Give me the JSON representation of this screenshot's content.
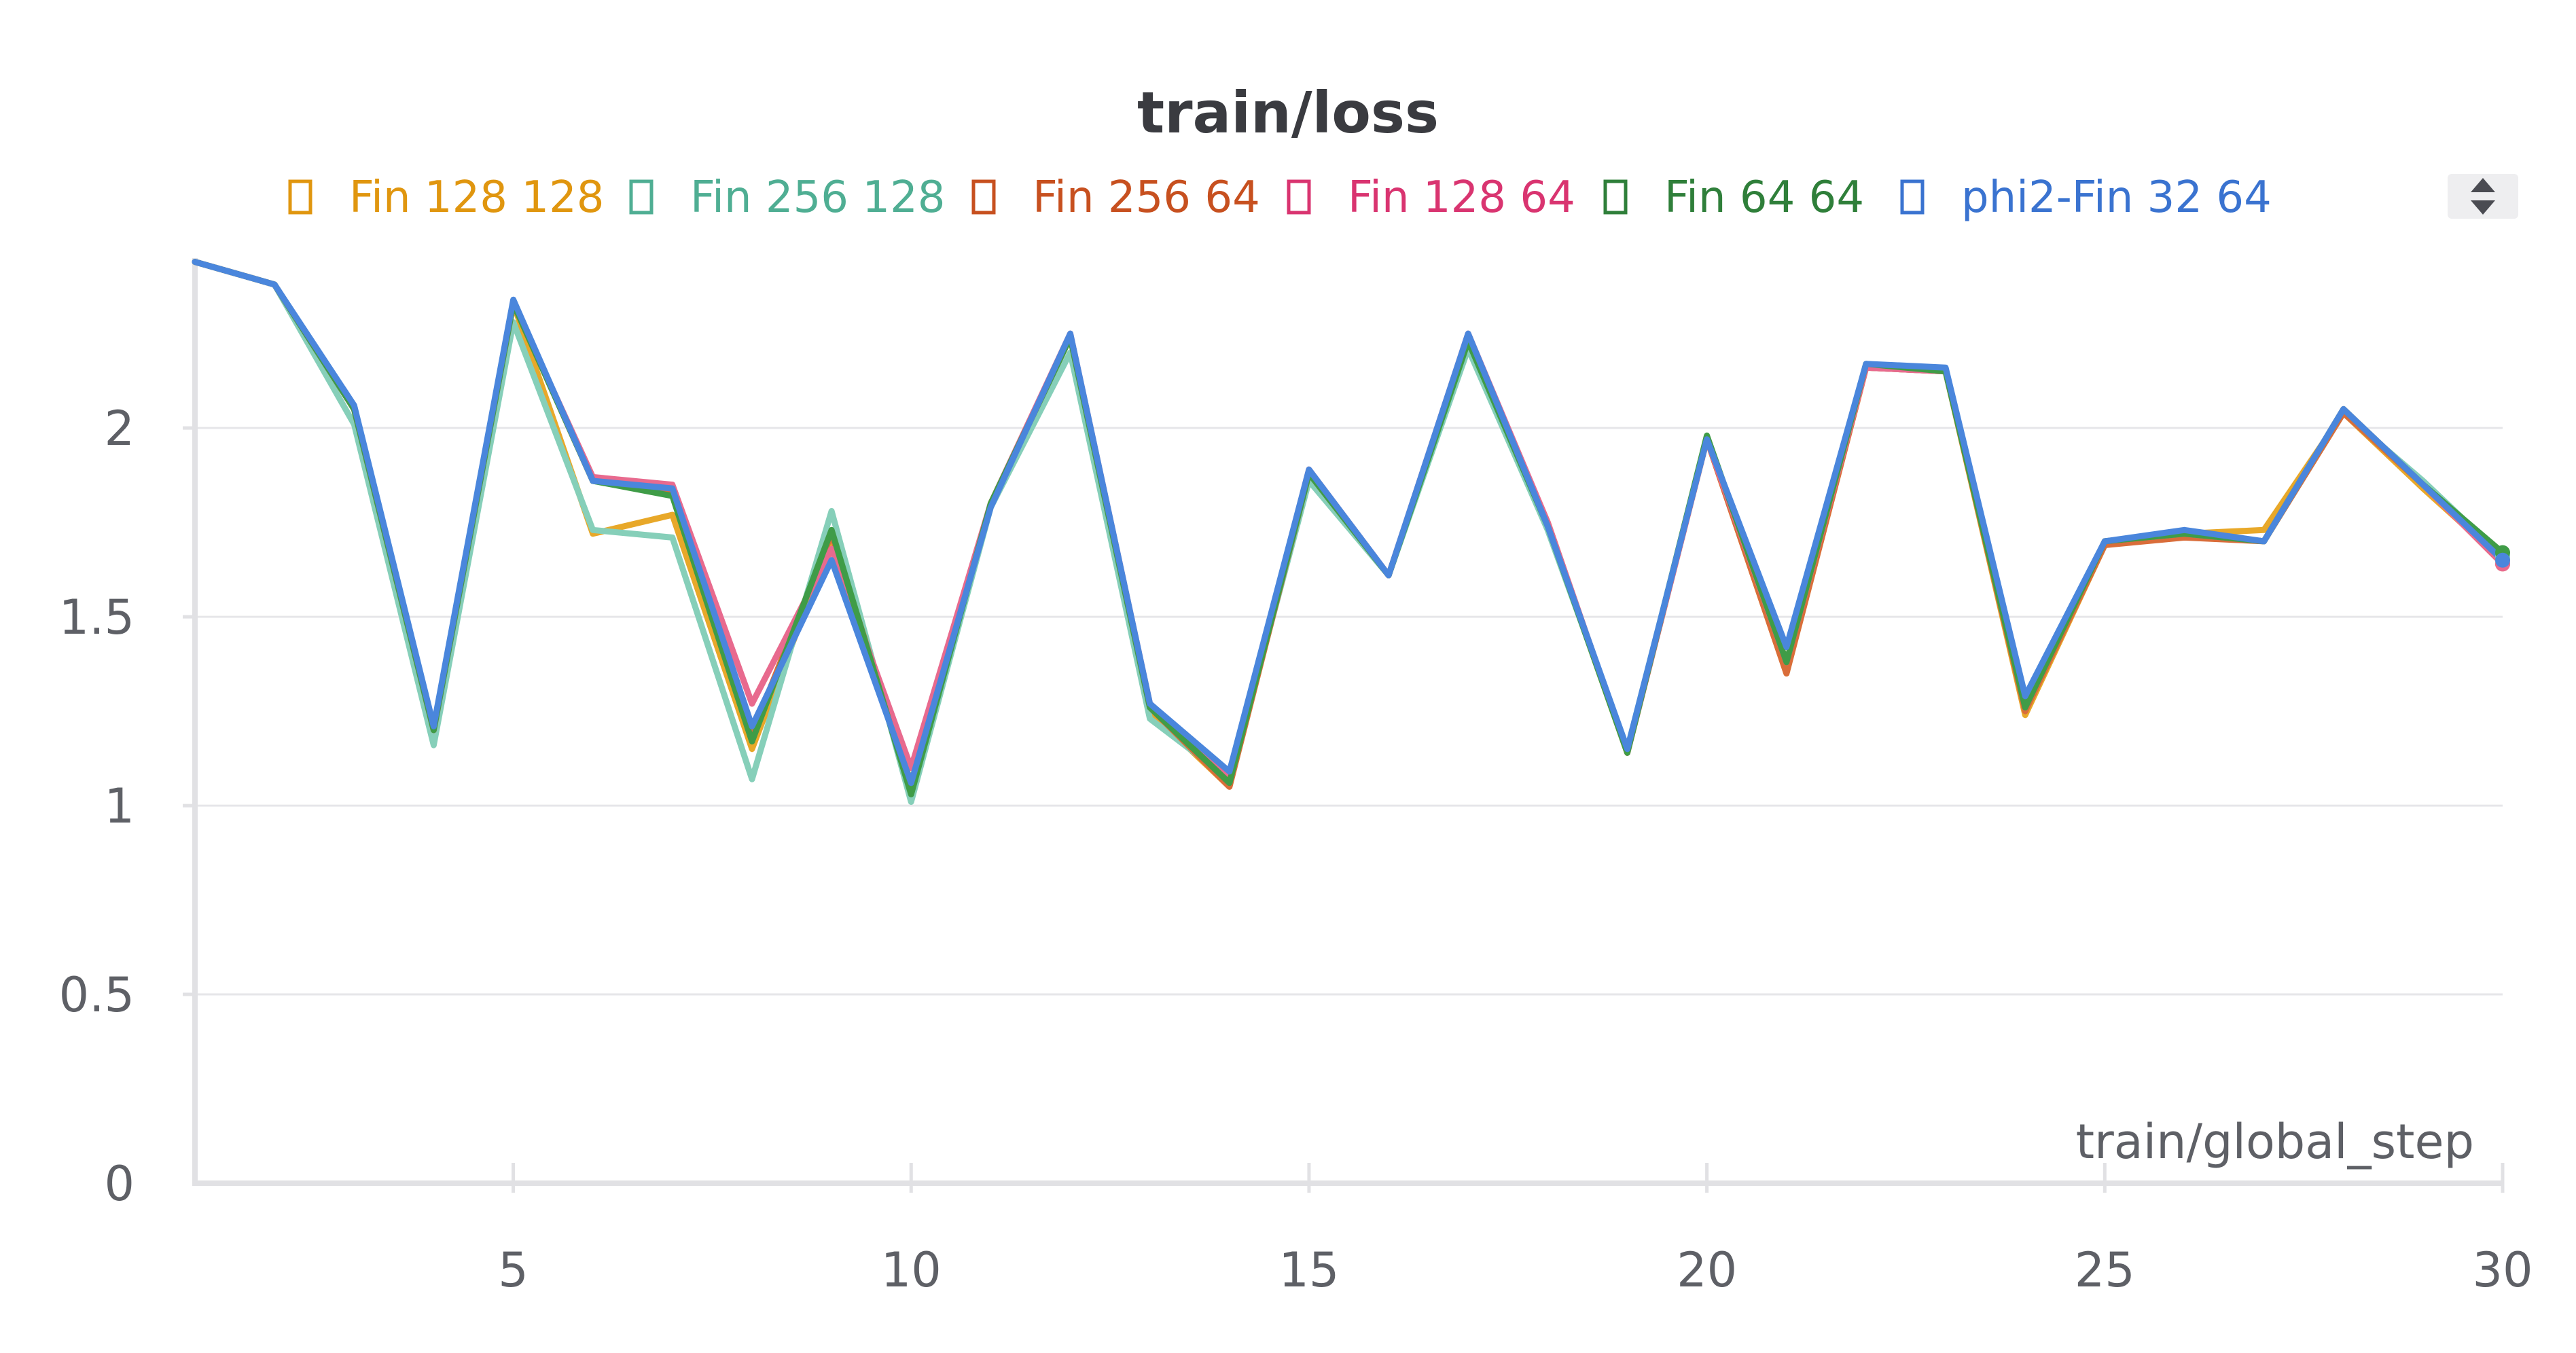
{
  "chart_data": {
    "type": "line",
    "title": "train/loss",
    "xlabel": "train/global_step",
    "ylabel": "",
    "xlim": [
      1,
      30
    ],
    "ylim": [
      0,
      2.45
    ],
    "x_ticks": [
      5,
      10,
      15,
      20,
      25,
      30
    ],
    "y_ticks": [
      0,
      0.5,
      1,
      1.5,
      2
    ],
    "y_tick_labels": [
      "0",
      "0.5",
      "1",
      "1.5",
      "2"
    ],
    "x_tick_labels": [
      "5",
      "10",
      "15",
      "20",
      "25",
      "30"
    ],
    "grid": "horizontal",
    "legend_position": "top",
    "x": [
      1,
      2,
      3,
      4,
      5,
      6,
      7,
      8,
      9,
      10,
      11,
      12,
      13,
      14,
      15,
      16,
      17,
      18,
      19,
      20,
      21,
      22,
      23,
      24,
      25,
      26,
      27,
      28,
      29,
      30
    ],
    "series": [
      {
        "name": "Fin 128 128",
        "color": "#e8a829",
        "values": [
          2.44,
          2.38,
          2.05,
          1.2,
          2.33,
          1.72,
          1.77,
          1.15,
          1.7,
          1.06,
          1.8,
          2.24,
          1.25,
          1.05,
          1.88,
          1.61,
          2.24,
          1.74,
          1.14,
          1.97,
          1.35,
          2.16,
          2.15,
          1.24,
          1.69,
          1.72,
          1.73,
          2.04,
          1.84,
          1.65
        ]
      },
      {
        "name": "Fin 256 128",
        "color": "#86cfb9",
        "values": [
          2.44,
          2.38,
          2.01,
          1.16,
          2.28,
          1.73,
          1.71,
          1.07,
          1.78,
          1.01,
          1.79,
          2.2,
          1.23,
          1.07,
          1.86,
          1.61,
          2.21,
          1.73,
          1.15,
          1.97,
          1.38,
          2.16,
          2.15,
          1.26,
          1.69,
          1.72,
          1.7,
          2.04,
          1.86,
          1.66
        ]
      },
      {
        "name": "Fin 256 64",
        "color": "#d96d3a",
        "values": [
          2.44,
          2.38,
          2.05,
          1.2,
          2.33,
          1.86,
          1.83,
          1.19,
          1.72,
          1.05,
          1.8,
          2.24,
          1.26,
          1.05,
          1.88,
          1.61,
          2.24,
          1.75,
          1.14,
          1.97,
          1.35,
          2.16,
          2.15,
          1.25,
          1.69,
          1.71,
          1.7,
          2.04,
          1.85,
          1.64
        ]
      },
      {
        "name": "Fin 128 64",
        "color": "#e86a8e",
        "values": [
          2.44,
          2.38,
          2.05,
          1.2,
          2.33,
          1.87,
          1.85,
          1.27,
          1.68,
          1.1,
          1.8,
          2.25,
          1.27,
          1.08,
          1.89,
          1.61,
          2.25,
          1.75,
          1.14,
          1.97,
          1.38,
          2.16,
          2.15,
          1.27,
          1.7,
          1.72,
          1.7,
          2.05,
          1.85,
          1.64
        ]
      },
      {
        "name": "Fin 64 64",
        "color": "#3f9c47",
        "values": [
          2.44,
          2.38,
          2.05,
          1.2,
          2.33,
          1.86,
          1.82,
          1.17,
          1.73,
          1.03,
          1.8,
          2.24,
          1.26,
          1.06,
          1.88,
          1.61,
          2.23,
          1.74,
          1.14,
          1.98,
          1.38,
          2.17,
          2.15,
          1.26,
          1.7,
          1.72,
          1.7,
          2.05,
          1.85,
          1.67
        ]
      },
      {
        "name": "phi2-Fin 32 64",
        "color": "#4a86dc",
        "values": [
          2.44,
          2.38,
          2.06,
          1.21,
          2.34,
          1.86,
          1.84,
          1.21,
          1.65,
          1.06,
          1.79,
          2.25,
          1.27,
          1.09,
          1.89,
          1.61,
          2.25,
          1.74,
          1.15,
          1.97,
          1.42,
          2.17,
          2.16,
          1.29,
          1.7,
          1.73,
          1.7,
          2.05,
          1.85,
          1.65
        ]
      }
    ]
  },
  "legend_items": [
    {
      "label": "Fin 128 128",
      "color": "#e0960f"
    },
    {
      "label": "Fin 256 128",
      "color": "#4fae93"
    },
    {
      "label": "Fin 256 64",
      "color": "#c7501f"
    },
    {
      "label": "Fin 128 64",
      "color": "#d93470"
    },
    {
      "label": "Fin 64 64",
      "color": "#2f7f3a"
    },
    {
      "label": "phi2-Fin 32 64",
      "color": "#3a73d0"
    }
  ],
  "legend_scroll_icon": "up-down-arrows-icon"
}
